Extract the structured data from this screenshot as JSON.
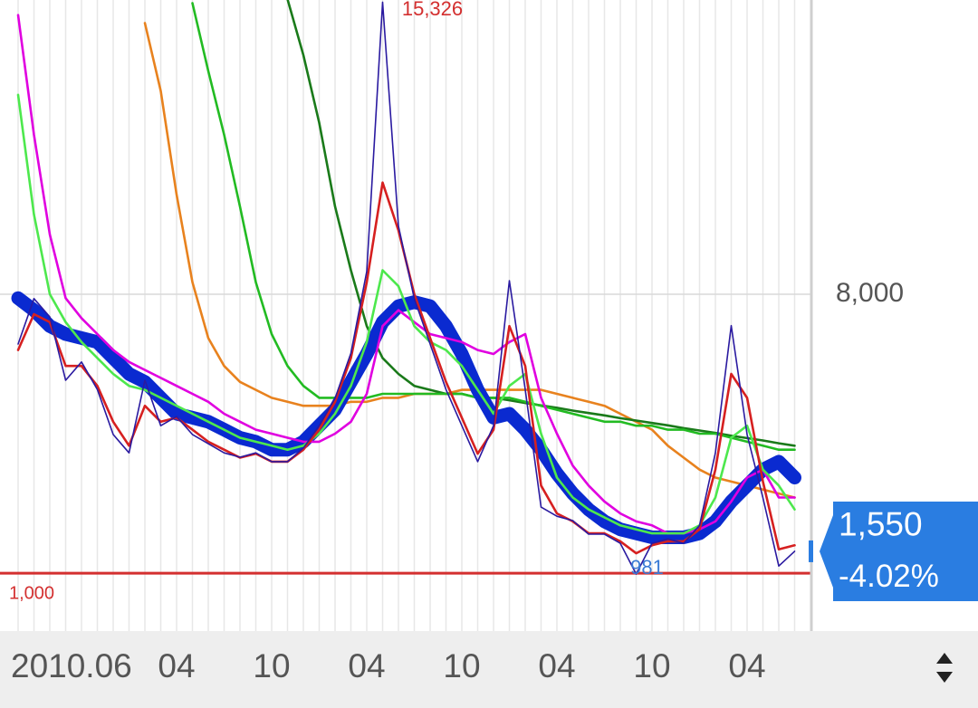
{
  "chart_data": {
    "type": "line",
    "categories": [
      "2010.06",
      null,
      null,
      null,
      null,
      null,
      null,
      null,
      null,
      null,
      "04",
      null,
      null,
      null,
      null,
      null,
      "10",
      null,
      null,
      null,
      null,
      null,
      "04",
      null,
      null,
      null,
      null,
      null,
      "10",
      null,
      null,
      null,
      null,
      null,
      "04",
      null,
      null,
      null,
      null,
      null,
      "10",
      null,
      null,
      null,
      null,
      null,
      "04",
      null,
      null,
      null
    ],
    "ylim": [
      -450,
      15380
    ],
    "yticks": [
      {
        "value": 8000,
        "label": "8,000"
      }
    ],
    "grid": true,
    "hline": {
      "value": 1000,
      "label": "1,000",
      "color": "#d32f2f"
    },
    "last": {
      "value": 1550,
      "label": "1,550",
      "change": -4.02,
      "change_label": "-4.02%"
    },
    "series": [
      {
        "color": "#e8821e",
        "values": [
          null,
          null,
          null,
          null,
          null,
          null,
          null,
          null,
          14800,
          13100,
          10500,
          8300,
          6900,
          6200,
          5800,
          5600,
          5400,
          5300,
          5200,
          5200,
          5200,
          5300,
          5300,
          5400,
          5400,
          5500,
          5500,
          5500,
          5600,
          5600,
          5600,
          5600,
          5600,
          5600,
          5500,
          5400,
          5300,
          5200,
          5000,
          4800,
          4600,
          4200,
          3900,
          3600,
          3400,
          3300,
          3200,
          3100,
          3000,
          2900
        ]
      },
      {
        "color": "#1a7a1a",
        "values": [
          null,
          null,
          null,
          null,
          null,
          null,
          null,
          null,
          null,
          null,
          null,
          null,
          null,
          null,
          null,
          null,
          null,
          15400,
          14000,
          12300,
          10200,
          8600,
          7200,
          6400,
          6000,
          5700,
          5600,
          5500,
          5500,
          5400,
          5400,
          5340,
          5270,
          5210,
          5150,
          5080,
          5020,
          4960,
          4890,
          4830,
          4770,
          4710,
          4640,
          4580,
          4520,
          4450,
          4390,
          4330,
          4260,
          4200
        ]
      },
      {
        "color": "#22bb22",
        "values": [
          null,
          null,
          null,
          null,
          null,
          null,
          null,
          null,
          null,
          null,
          null,
          15300,
          13600,
          12000,
          10200,
          8300,
          7000,
          6200,
          5700,
          5400,
          5400,
          5400,
          5400,
          5500,
          5500,
          5500,
          5500,
          5500,
          5500,
          5400,
          5400,
          5400,
          5300,
          5200,
          5100,
          5000,
          4900,
          4800,
          4800,
          4700,
          4700,
          4600,
          4600,
          4500,
          4500,
          4400,
          4300,
          4200,
          4100,
          4100
        ]
      },
      {
        "color": "#0a2ad0",
        "thick": true,
        "values": [
          7900,
          7600,
          7200,
          7000,
          6900,
          6800,
          6400,
          6000,
          5800,
          5400,
          5000,
          4900,
          4800,
          4600,
          4400,
          4300,
          4100,
          4100,
          4300,
          4700,
          5100,
          5800,
          6500,
          7300,
          7700,
          7800,
          7700,
          7200,
          6500,
          5600,
          4900,
          5000,
          4600,
          4100,
          3500,
          3000,
          2600,
          2300,
          2100,
          2000,
          1900,
          1900,
          1900,
          2000,
          2300,
          2800,
          3200,
          3600,
          3800,
          3400
        ]
      },
      {
        "color": "#e000e0",
        "values": [
          15000,
          12000,
          9500,
          7900,
          7400,
          7000,
          6600,
          6300,
          6100,
          5900,
          5700,
          5500,
          5300,
          5000,
          4800,
          4600,
          4500,
          4400,
          4300,
          4300,
          4500,
          4800,
          5500,
          7200,
          7600,
          7300,
          7000,
          6900,
          6800,
          6600,
          6500,
          6800,
          7000,
          5400,
          4500,
          3700,
          3200,
          2800,
          2500,
          2300,
          2200,
          2000,
          2000,
          2100,
          2300,
          2800,
          3400,
          3600,
          2900,
          2900
        ]
      },
      {
        "color": "#4de84d",
        "values": [
          13000,
          10000,
          8000,
          7300,
          6800,
          6400,
          6000,
          5700,
          5600,
          5400,
          5200,
          5000,
          4800,
          4600,
          4400,
          4300,
          4200,
          4100,
          4200,
          4500,
          5000,
          5700,
          6800,
          8600,
          8200,
          7200,
          6800,
          6600,
          6200,
          5600,
          5000,
          5700,
          6000,
          4500,
          3400,
          2900,
          2600,
          2400,
          2200,
          2100,
          2000,
          2000,
          2000,
          2200,
          2900,
          4400,
          4700,
          3600,
          3200,
          2600
        ]
      },
      {
        "color": "#d62020",
        "values": [
          6600,
          7500,
          7300,
          6200,
          6200,
          5700,
          4800,
          4200,
          5200,
          4800,
          4900,
          4600,
          4300,
          4100,
          3900,
          4000,
          3800,
          3800,
          4100,
          4600,
          5300,
          6400,
          8300,
          10800,
          9600,
          8000,
          6900,
          5800,
          4900,
          4000,
          4600,
          7200,
          6200,
          3200,
          2500,
          2300,
          2000,
          2000,
          1800,
          1500,
          1700,
          1800,
          1800,
          2100,
          3600,
          6000,
          5400,
          3300,
          1600,
          1700
        ]
      },
      {
        "color": "#2a1aa0",
        "values": [
          6750,
          7890,
          7430,
          5840,
          6300,
          5610,
          4480,
          4020,
          5840,
          4700,
          4930,
          4480,
          4250,
          4020,
          3910,
          4020,
          3800,
          3800,
          4140,
          4700,
          5390,
          6520,
          8570,
          15326,
          9710,
          7890,
          6750,
          5610,
          4700,
          3800,
          4700,
          8340,
          5610,
          2660,
          2430,
          2320,
          1980,
          1980,
          1750,
          981,
          1750,
          1860,
          1750,
          2200,
          4020,
          7210,
          4480,
          2890,
          1180,
          1550
        ],
        "value_labels": [
          null,
          null,
          null,
          null,
          null,
          null,
          null,
          null,
          null,
          null,
          null,
          null,
          null,
          null,
          null,
          null,
          null,
          null,
          null,
          null,
          null,
          null,
          null,
          "15,326",
          null,
          null,
          null,
          null,
          null,
          null,
          null,
          null,
          null,
          null,
          null,
          null,
          null,
          null,
          null,
          "981",
          null,
          null,
          null,
          null,
          null,
          null,
          null,
          null,
          null,
          null
        ]
      }
    ]
  }
}
